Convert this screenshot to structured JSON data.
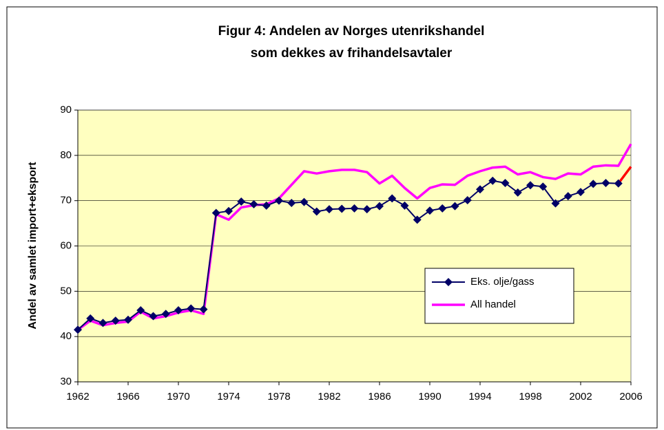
{
  "chart_data": {
    "type": "line",
    "title": "Figur 4: Andelen av Norges utenrikshandel",
    "subtitle": "som dekkes av frihandelsavtaler",
    "y_label": "Andel av samlet import+eksport",
    "x": [
      1962,
      1963,
      1964,
      1965,
      1966,
      1967,
      1968,
      1969,
      1970,
      1971,
      1972,
      1973,
      1974,
      1975,
      1976,
      1977,
      1978,
      1979,
      1980,
      1981,
      1982,
      1983,
      1984,
      1985,
      1986,
      1987,
      1988,
      1989,
      1990,
      1991,
      1992,
      1993,
      1994,
      1995,
      1996,
      1997,
      1998,
      1999,
      2000,
      2001,
      2002,
      2003,
      2004,
      2005,
      2006
    ],
    "series": [
      {
        "name": "Eks. olje/gass",
        "color": "#000066",
        "marker": "diamond",
        "values": [
          41.5,
          44,
          43,
          43.5,
          43.7,
          45.8,
          44.5,
          45,
          45.8,
          46.2,
          46,
          67.3,
          67.7,
          69.8,
          69.2,
          68.9,
          70,
          69.5,
          69.7,
          67.6,
          68.1,
          68.2,
          68.3,
          68.1,
          68.8,
          70.5,
          68.9,
          65.8,
          67.8,
          68.3,
          68.8,
          70.1,
          72.5,
          74.4,
          73.9,
          71.8,
          73.4,
          73.1,
          69.4,
          71,
          71.9,
          73.7,
          73.9,
          73.8,
          null
        ]
      },
      {
        "name": "All handel",
        "color": "#ff00ff",
        "values": [
          41.5,
          43.5,
          42.5,
          43,
          43.3,
          45.5,
          44,
          44.5,
          45.3,
          45.8,
          45,
          67,
          65.8,
          68.5,
          69,
          69.2,
          70.5,
          73.5,
          76.5,
          76,
          76.5,
          76.8,
          76.8,
          76.3,
          73.8,
          75.5,
          72.8,
          70.5,
          72.8,
          73.6,
          73.5,
          75.5,
          76.5,
          77.3,
          77.5,
          75.8,
          76.3,
          75.2,
          74.8,
          76,
          75.8,
          77.5,
          77.8,
          77.7,
          82.5
        ]
      },
      {
        "color": "#ff0000",
        "values": [
          null,
          null,
          null,
          null,
          null,
          null,
          null,
          null,
          null,
          null,
          null,
          null,
          null,
          null,
          null,
          null,
          null,
          null,
          null,
          null,
          null,
          null,
          null,
          null,
          null,
          null,
          null,
          null,
          null,
          null,
          null,
          null,
          null,
          null,
          null,
          null,
          null,
          null,
          null,
          null,
          null,
          null,
          null,
          73.8,
          77.5
        ]
      }
    ],
    "xlim": [
      1962,
      2006
    ],
    "xticks": [
      1962,
      1966,
      1970,
      1974,
      1978,
      1982,
      1986,
      1990,
      1994,
      1998,
      2002,
      2006
    ],
    "ylim": [
      30,
      90
    ],
    "yticks": [
      30,
      40,
      50,
      60,
      70,
      80,
      90
    ],
    "grid": true
  }
}
